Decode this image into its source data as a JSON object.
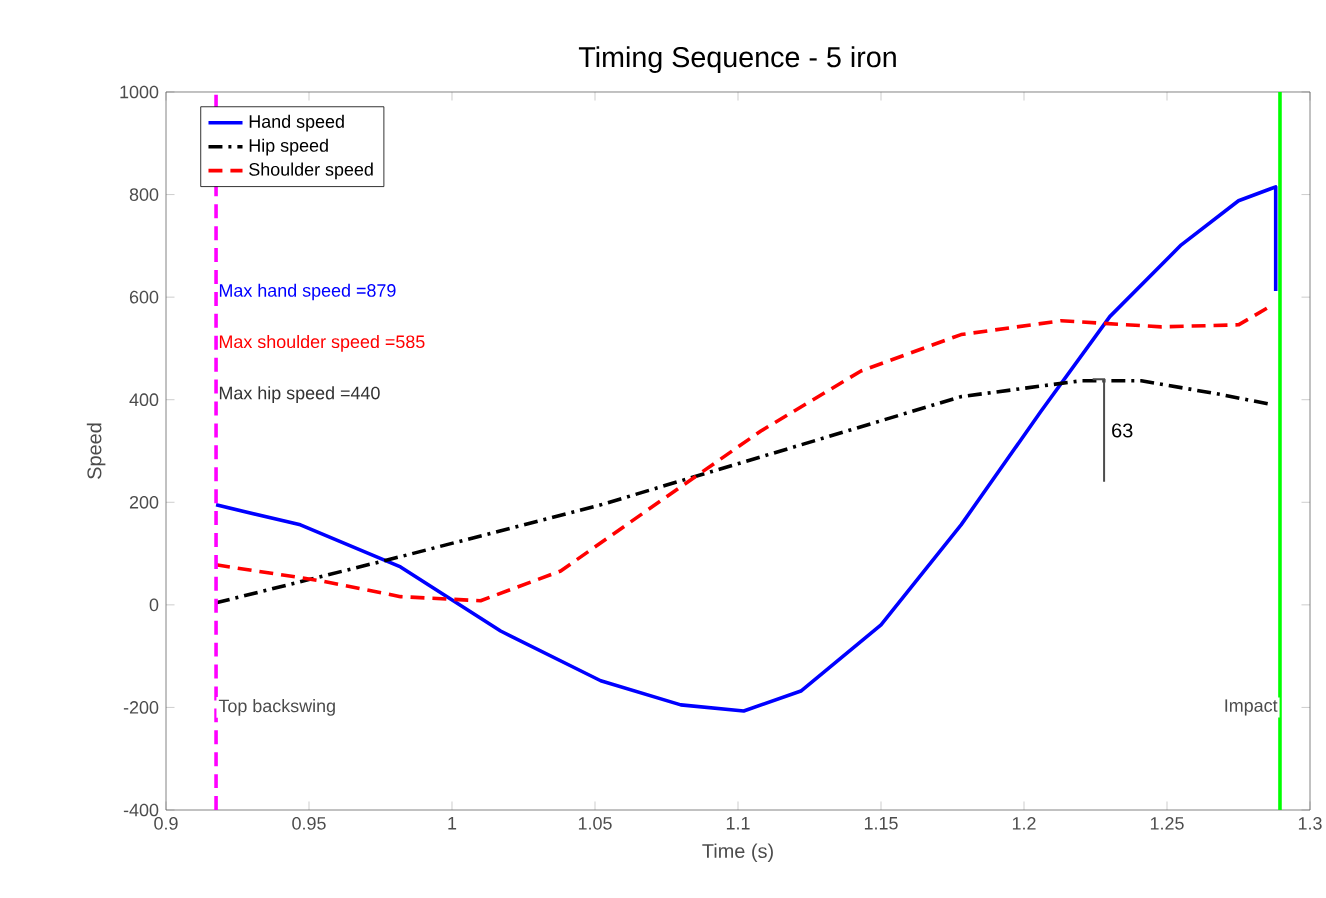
{
  "chart_data": {
    "type": "line",
    "title": "Timing Sequence - 5 iron",
    "xlabel": "Time (s)",
    "ylabel": "Speed",
    "xlim": [
      0.9,
      1.3
    ],
    "xticks": [
      0.9,
      0.95,
      1,
      1.05,
      1.1,
      1.15,
      1.2,
      1.25,
      1.3
    ],
    "ylim": [
      -400,
      1000
    ],
    "yticks": [
      -400,
      -200,
      0,
      200,
      400,
      600,
      800,
      1000
    ],
    "legend": "top left",
    "marker": "none",
    "grid": false,
    "series": [
      {
        "name": "Hand speed",
        "color": "#0000ff",
        "line_style": "solid",
        "x": [
          0.9175,
          0.947,
          0.982,
          1.017,
          1.052,
          1.08,
          1.102,
          1.122,
          1.15,
          1.178,
          1.206,
          1.23,
          1.255,
          1.275,
          1.288,
          1.288
        ],
        "values": [
          195,
          156,
          74,
          -51,
          -148,
          -195,
          -207,
          -168,
          -39,
          156,
          378,
          562,
          702,
          788,
          815,
          612
        ]
      },
      {
        "name": "Hip speed",
        "color": "#000000",
        "line_style": "dashdot",
        "x": [
          0.9175,
          0.982,
          1.052,
          1.122,
          1.178,
          1.22,
          1.241,
          1.269,
          1.287
        ],
        "values": [
          4,
          94,
          195,
          312,
          406,
          437,
          437,
          410,
          390
        ]
      },
      {
        "name": "Shoulder speed",
        "color": "#ff0000",
        "line_style": "dashed",
        "x": [
          0.9175,
          0.954,
          0.982,
          1.01,
          1.038,
          1.073,
          1.108,
          1.143,
          1.178,
          1.213,
          1.248,
          1.275,
          1.287
        ],
        "values": [
          78,
          47,
          16,
          8,
          66,
          203,
          339,
          456,
          527,
          554,
          542,
          546,
          585
        ]
      }
    ],
    "ref_lines": [
      {
        "axis": "x",
        "value": 0.9175,
        "label": "Top backswing",
        "color": "#ff00ff",
        "line_style": "dashed"
      },
      {
        "axis": "x",
        "value": 1.2895,
        "label": "Impact",
        "color": "#00ff00",
        "line_style": "solid"
      }
    ],
    "annotations": [
      "Max hand speed =879",
      "Max shoulder speed =585",
      "Max hip speed =440",
      "63"
    ]
  }
}
